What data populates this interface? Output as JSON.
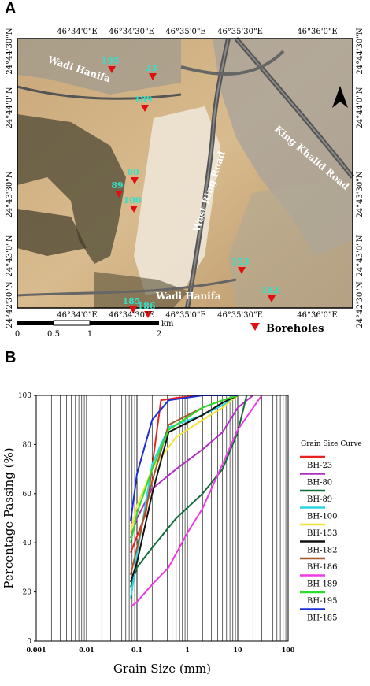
{
  "panel_a": {
    "label": "A",
    "top_coords": [
      "46°34'0\"E",
      "46°34'30\"E",
      "46°35'0\"E",
      "46°35'30\"E",
      "46°36'0\"E"
    ],
    "bottom_coords": [
      "46°34'0\"E",
      "46°34'30\"E",
      "46°35'0\"E",
      "46°35'30\"E",
      "46°36'0\"E"
    ],
    "left_coords": [
      "24°44'30\"N",
      "24°44'0\"N",
      "24°43'30\"N",
      "24°43'0\"N",
      "24°42'30\"N"
    ],
    "right_coords": [
      "24°44'30\"N",
      "24°44'0\"N",
      "24°43'30\"N",
      "24°43'0\"N",
      "24°42'30\"N"
    ],
    "place_labels": {
      "wadi_hanifa_top": "Wadi Hanifa",
      "wadi_hanifa_bottom": "Wadi Hanifa",
      "west_ring_road": "West Ring Road",
      "king_khalid_road": "King Khalid Road"
    },
    "boreholes": [
      {
        "id": "195",
        "label": "195"
      },
      {
        "id": "23",
        "label": "23"
      },
      {
        "id": "189",
        "label": "189"
      },
      {
        "id": "80",
        "label": "80"
      },
      {
        "id": "89",
        "label": "89"
      },
      {
        "id": "100",
        "label": "100"
      },
      {
        "id": "153",
        "label": "153"
      },
      {
        "id": "182",
        "label": "182"
      },
      {
        "id": "185",
        "label": "185"
      },
      {
        "id": "186",
        "label": "186"
      }
    ],
    "scale": {
      "ticks": [
        "0",
        "0.5",
        "1",
        "2"
      ],
      "unit": "km"
    },
    "legend_label": "Boreholes",
    "colors": {
      "marker": "#e01010",
      "borehole_label": "#33e0c8",
      "frame": "#000000"
    }
  },
  "panel_b": {
    "label": "B"
  },
  "chart_data": {
    "type": "line",
    "xlabel": "Grain Size (mm)",
    "ylabel": "Percentage Passing (%)",
    "x_scale": "log",
    "xlim": [
      0.001,
      100
    ],
    "ylim": [
      0,
      100
    ],
    "x_tick_labels": [
      "0.001",
      "0.01",
      "0.1",
      "1",
      "10",
      "100"
    ],
    "x_tick_values": [
      0.001,
      0.01,
      0.1,
      1,
      10,
      100
    ],
    "y_tick_labels": [
      "0",
      "20",
      "40",
      "60",
      "80",
      "100"
    ],
    "y_tick_values": [
      0,
      20,
      40,
      60,
      80,
      100
    ],
    "grid": "vertical",
    "legend_title": "Grain Size Curve",
    "legend_position": "right",
    "series": [
      {
        "name": "BH-23",
        "color": "#e8231f",
        "x": [
          0.075,
          0.15,
          0.3,
          0.6,
          2,
          5,
          10
        ],
        "y": [
          36,
          52,
          98,
          99,
          100,
          100,
          100
        ]
      },
      {
        "name": "BH-80",
        "color": "#b12ec4",
        "x": [
          0.075,
          0.1,
          0.2,
          0.6,
          2,
          5,
          10,
          20
        ],
        "y": [
          42,
          50,
          62,
          70,
          78,
          85,
          95,
          100
        ]
      },
      {
        "name": "BH-89",
        "color": "#116b3a",
        "x": [
          0.075,
          0.1,
          0.2,
          0.6,
          2,
          5,
          10,
          15
        ],
        "y": [
          22,
          30,
          38,
          50,
          60,
          70,
          85,
          100
        ]
      },
      {
        "name": "BH-100",
        "color": "#2ad6e0",
        "x": [
          0.075,
          0.1,
          0.2,
          0.425,
          2,
          5,
          10
        ],
        "y": [
          17,
          35,
          72,
          87,
          92,
          96,
          100
        ]
      },
      {
        "name": "BH-153",
        "color": "#f3e33a",
        "x": [
          0.075,
          0.1,
          0.2,
          0.6,
          2,
          5,
          10
        ],
        "y": [
          44,
          55,
          70,
          83,
          90,
          95,
          100
        ]
      },
      {
        "name": "BH-182",
        "color": "#111111",
        "x": [
          0.075,
          0.1,
          0.2,
          0.425,
          2,
          5,
          10
        ],
        "y": [
          24,
          32,
          60,
          85,
          92,
          97,
          100
        ]
      },
      {
        "name": "BH-186",
        "color": "#a6572a",
        "x": [
          0.075,
          0.1,
          0.2,
          0.425,
          2,
          5,
          10
        ],
        "y": [
          27,
          38,
          65,
          88,
          95,
          98,
          100
        ]
      },
      {
        "name": "BH-189",
        "color": "#ee3be3",
        "x": [
          0.075,
          0.1,
          0.2,
          0.425,
          1,
          2,
          5,
          10,
          30
        ],
        "y": [
          14,
          16,
          23,
          30,
          44,
          54,
          72,
          86,
          100
        ]
      },
      {
        "name": "BH-195",
        "color": "#2cde2c",
        "x": [
          0.075,
          0.1,
          0.2,
          0.425,
          2,
          5,
          10
        ],
        "y": [
          40,
          52,
          70,
          86,
          95,
          98,
          100
        ]
      },
      {
        "name": "BH-185",
        "color": "#1c2fd8",
        "x": [
          0.075,
          0.1,
          0.2,
          0.425,
          2,
          5,
          10
        ],
        "y": [
          49,
          68,
          90,
          98,
          100,
          100,
          100
        ]
      }
    ]
  }
}
